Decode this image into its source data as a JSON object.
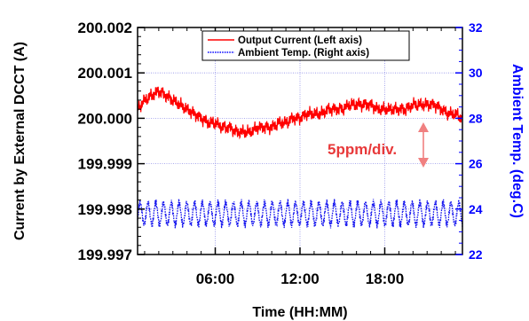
{
  "chart_data": {
    "type": "line",
    "xlabel": "Time (HH:MM)",
    "ylabel_left": "Current by External DCCT (A)",
    "ylabel_right": "Ambient Temp. (deg.C)",
    "xlim_hours": [
      0.5,
      23.5
    ],
    "ylim_left": [
      199.997,
      200.002
    ],
    "ylim_right": [
      22,
      32
    ],
    "x_ticks": [
      {
        "hours": 6,
        "label": "06:00"
      },
      {
        "hours": 12,
        "label": "12:00"
      },
      {
        "hours": 18,
        "label": "18:00"
      }
    ],
    "y_ticks_left": [
      {
        "value": 200.002,
        "label": "200.002"
      },
      {
        "value": 200.001,
        "label": "200.001"
      },
      {
        "value": 200.0,
        "label": "200.000"
      },
      {
        "value": 199.999,
        "label": "199.999"
      },
      {
        "value": 199.998,
        "label": "199.998"
      },
      {
        "value": 199.997,
        "label": "199.997"
      }
    ],
    "y_ticks_right": [
      {
        "value": 32,
        "label": "32"
      },
      {
        "value": 30,
        "label": "30"
      },
      {
        "value": 28,
        "label": "28"
      },
      {
        "value": 26,
        "label": "26"
      },
      {
        "value": 24,
        "label": "24"
      },
      {
        "value": 22,
        "label": "22"
      }
    ],
    "grid": true,
    "legend_position": "top-center",
    "series": [
      {
        "name": "Output Current (Left axis)",
        "axis": "left",
        "color": "#ff0000",
        "style": "solid",
        "x": [
          0.5,
          1,
          1.5,
          2,
          2.5,
          3,
          3.5,
          4,
          4.5,
          5,
          5.5,
          6,
          6.5,
          7,
          7.5,
          8,
          8.5,
          9,
          9.5,
          10,
          10.5,
          11,
          11.5,
          12,
          12.5,
          13,
          13.5,
          14,
          14.5,
          15,
          15.5,
          16,
          16.5,
          17,
          17.5,
          18,
          18.5,
          19,
          19.5,
          20,
          20.5,
          21,
          21.5,
          22,
          22.5,
          23,
          23.5
        ],
        "y": [
          200.0002,
          200.0004,
          200.0005,
          200.0006,
          200.0005,
          200.0004,
          200.0003,
          200.0002,
          200.0001,
          200.0,
          199.9999,
          199.9999,
          199.9998,
          199.9998,
          199.9997,
          199.9997,
          199.9997,
          199.9998,
          199.9998,
          199.9998,
          199.9999,
          199.9999,
          200.0,
          200.0,
          200.0001,
          200.0001,
          200.0001,
          200.0002,
          200.0002,
          200.0002,
          200.0003,
          200.0003,
          200.0003,
          200.0003,
          200.0002,
          200.0002,
          200.0002,
          200.0002,
          200.0002,
          200.0003,
          200.0003,
          200.0003,
          200.0003,
          200.0002,
          200.0001,
          200.0001,
          200.0
        ]
      },
      {
        "name": "Ambient Temp. (Right axis)",
        "axis": "right",
        "color": "#0000ff",
        "style": "dotted",
        "x": [
          0.5,
          23.5
        ],
        "y": [
          23.8,
          23.8
        ],
        "oscillation_range": [
          23.1,
          24.4
        ]
      }
    ],
    "annotations": [
      {
        "text": "5ppm/div.",
        "color": "#e8393a"
      }
    ],
    "colors": {
      "left_axis": "#000000",
      "right_axis": "#0000ff",
      "grid": "#8f8fe8",
      "annotation_arrow": "#f08080"
    }
  }
}
